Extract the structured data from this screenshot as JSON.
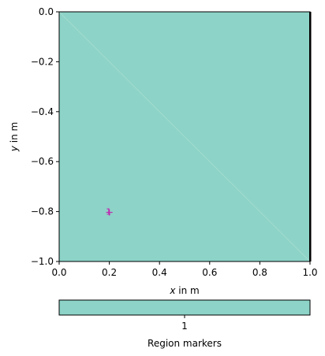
{
  "chart_data": {
    "type": "heatmap",
    "title": "",
    "xlabel": {
      "var": "x",
      "unit": " in m"
    },
    "ylabel": {
      "var": "y",
      "unit": " in m"
    },
    "xlim": [
      0.0,
      1.0
    ],
    "ylim": [
      -1.0,
      0.0
    ],
    "xticks": [
      0.0,
      0.2,
      0.4,
      0.6,
      0.8,
      1.0
    ],
    "xtick_labels": [
      "0.0",
      "0.2",
      "0.4",
      "0.6",
      "0.8",
      "1.0"
    ],
    "yticks": [
      0.0,
      -0.2,
      -0.4,
      -0.6,
      -0.8,
      -1.0
    ],
    "ytick_labels": [
      "0.0",
      "−0.2",
      "−0.4",
      "−0.6",
      "−0.8",
      "−1.0"
    ],
    "region": {
      "marker": 1,
      "color": "#8dd3c7"
    },
    "diagonal": {
      "from": [
        0.0,
        0.0
      ],
      "to": [
        1.0,
        -1.0
      ],
      "color": "#a3dccf"
    },
    "region_marker_point": {
      "x": 0.2,
      "y": -0.8,
      "label": "1",
      "color": "#c026b0"
    },
    "grid": false,
    "colorbar": {
      "position": "bottom",
      "ticks": [
        "1"
      ],
      "label": "Region markers",
      "color": "#8dd3c7"
    }
  }
}
